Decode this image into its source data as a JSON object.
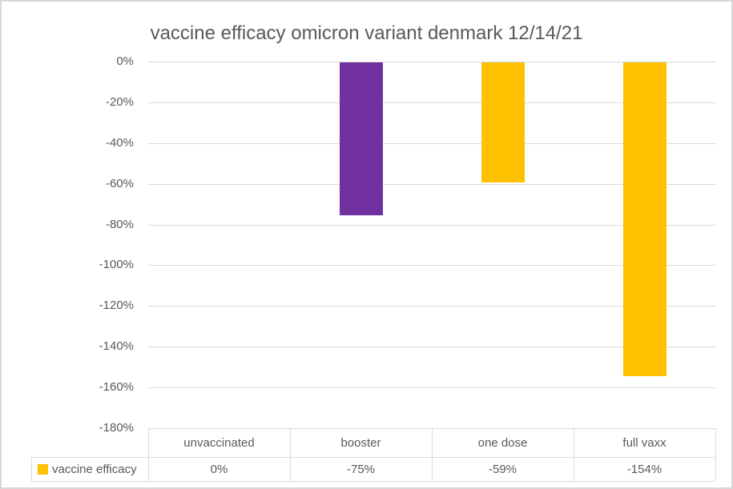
{
  "chart_data": {
    "type": "bar",
    "title": "vaccine efficacy omicron variant denmark 12/14/21",
    "categories": [
      "unvaccinated",
      "booster",
      "one dose",
      "full vaxx"
    ],
    "series": [
      {
        "name": "vaccine efficacy",
        "values": [
          0,
          -75,
          -59,
          -154
        ]
      }
    ],
    "value_labels": [
      "0%",
      "-75%",
      "-59%",
      "-154%"
    ],
    "bar_colors": [
      "#FFC000",
      "#7030A0",
      "#FFC000",
      "#FFC000"
    ],
    "xlabel": "",
    "ylabel": "",
    "ylim": [
      -180,
      0
    ],
    "ytick_values": [
      0,
      -20,
      -40,
      -60,
      -80,
      -100,
      -120,
      -140,
      -160,
      -180
    ],
    "ytick_labels": [
      "0%",
      "-20%",
      "-40%",
      "-60%",
      "-80%",
      "-100%",
      "-120%",
      "-140%",
      "-160%",
      "-180%"
    ],
    "grid": true,
    "legend": {
      "label": "vaccine efficacy",
      "marker_color": "#FFC000",
      "position": "bottom-left"
    },
    "data_table": {
      "shown": true,
      "row_header": "vaccine efficacy",
      "column_headers": [
        "unvaccinated",
        "booster",
        "one dose",
        "full vaxx"
      ],
      "row_values": [
        "0%",
        "-75%",
        "-59%",
        "-154%"
      ]
    },
    "colors": {
      "title_text": "#595959",
      "axis_text": "#595959",
      "gridline": "#D9D9D9",
      "table_border": "#D9D9D9",
      "chart_border": "#D7D7D7",
      "background": "#FFFFFF"
    }
  }
}
